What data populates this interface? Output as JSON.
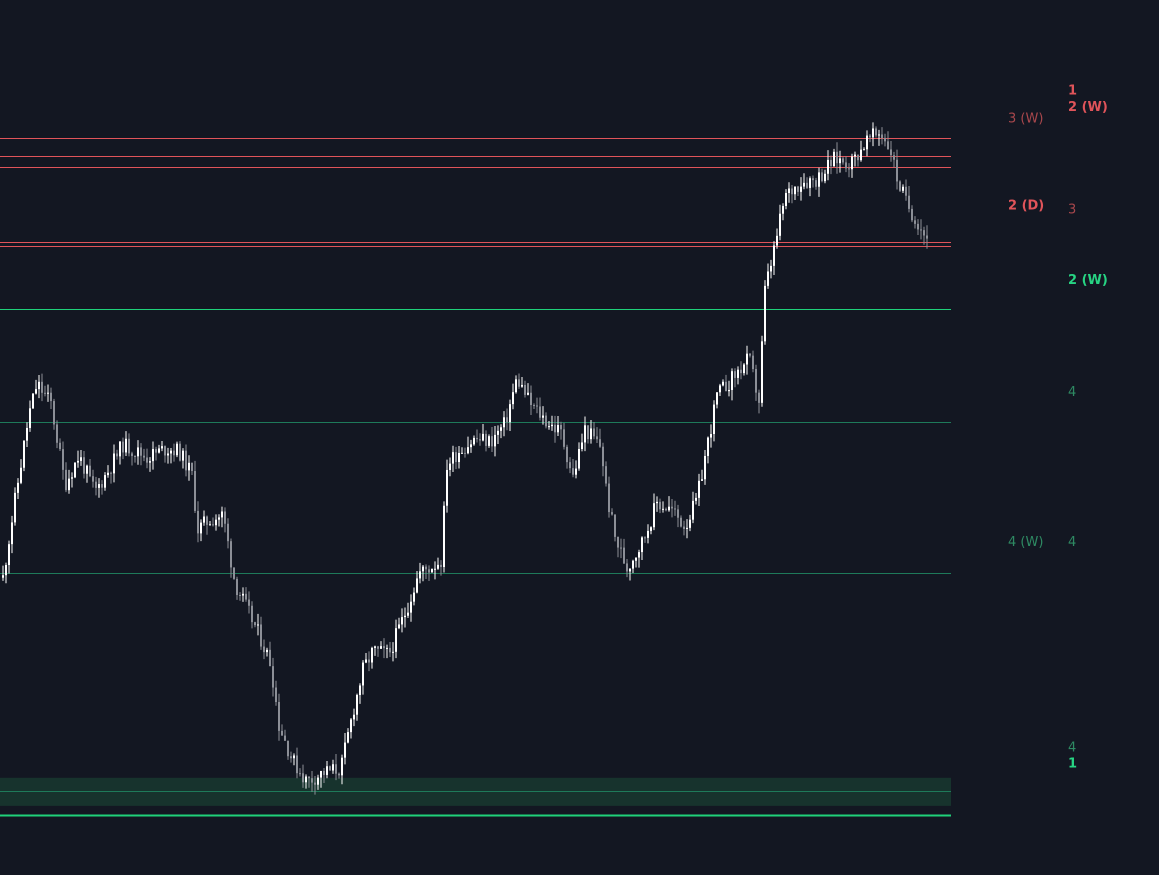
{
  "colors": {
    "background": "#131722",
    "bull_candle": "#ffffff",
    "bear_candle": "#8c8f97",
    "resistance": "#e0545a",
    "resistance_label": "#e0545a",
    "resistance_label_dim": "#a8474c",
    "support_strong": "#1fd17a",
    "support_weak": "#1e7a5a",
    "support_zone_fill": "#17332d",
    "support_label_bright": "#27d483",
    "support_label_dim": "#2e8a63"
  },
  "chart_data": {
    "type": "candlestick",
    "price_axis": {
      "top_price": 100,
      "bottom_price": 0
    },
    "candles": [],
    "levels": [
      {
        "id": "res-1",
        "kind": "resistance",
        "price": 89.7,
        "style": "strong"
      },
      {
        "id": "res-2",
        "kind": "resistance",
        "price": 87.4,
        "style": "strong"
      },
      {
        "id": "res-3",
        "kind": "resistance",
        "price": 85.9,
        "style": "strong"
      },
      {
        "id": "res-4",
        "kind": "resistance",
        "price": 76.0,
        "style": "strong"
      },
      {
        "id": "res-5",
        "kind": "resistance",
        "price": 75.4,
        "style": "strong"
      },
      {
        "id": "sup-1",
        "kind": "support",
        "price": 67.2,
        "style": "strong"
      },
      {
        "id": "sup-2",
        "kind": "support",
        "price": 52.2,
        "style": "weak"
      },
      {
        "id": "sup-3",
        "kind": "support",
        "price": 32.3,
        "style": "weak"
      },
      {
        "id": "sup-4",
        "kind": "support",
        "price": 3.5,
        "style": "weak"
      },
      {
        "id": "sup-5",
        "kind": "support",
        "price": 0.4,
        "style": "strong"
      }
    ],
    "zones": [
      {
        "id": "support-zone",
        "kind": "support",
        "from_price": 1.6,
        "to_price": 5.3
      }
    ],
    "labels": [
      {
        "id": "lbl-1-top",
        "text": "1",
        "price": 96.0,
        "column": "right",
        "color_key": "resistance_label",
        "bold": true
      },
      {
        "id": "lbl-2w-top",
        "text": "2 (W)",
        "price": 93.8,
        "column": "right",
        "color_key": "resistance_label",
        "bold": true
      },
      {
        "id": "lbl-3w",
        "text": "3 (W)",
        "price": 92.3,
        "column": "mid",
        "color_key": "resistance_label_dim",
        "bold": false
      },
      {
        "id": "lbl-2d",
        "text": "2 (D)",
        "price": 80.8,
        "column": "mid",
        "color_key": "resistance_label",
        "bold": true
      },
      {
        "id": "lbl-3",
        "text": "3",
        "price": 80.3,
        "column": "right",
        "color_key": "resistance_label_dim",
        "bold": false
      },
      {
        "id": "lbl-2w-green",
        "text": "2 (W)",
        "price": 71.0,
        "column": "right",
        "color_key": "support_label_bright",
        "bold": true
      },
      {
        "id": "lbl-4-a",
        "text": "4",
        "price": 56.2,
        "column": "right",
        "color_key": "support_label_dim",
        "bold": false
      },
      {
        "id": "lbl-4w",
        "text": "4 (W)",
        "price": 36.4,
        "column": "mid",
        "color_key": "support_label_dim",
        "bold": false
      },
      {
        "id": "lbl-4-b",
        "text": "4",
        "price": 36.4,
        "column": "right",
        "color_key": "support_label_dim",
        "bold": false
      },
      {
        "id": "lbl-4-c",
        "text": "4",
        "price": 9.3,
        "column": "right",
        "color_key": "support_label_dim",
        "bold": false
      },
      {
        "id": "lbl-1-bottom",
        "text": "1",
        "price": 7.2,
        "column": "right",
        "color_key": "support_label_bright",
        "bold": true
      }
    ]
  }
}
